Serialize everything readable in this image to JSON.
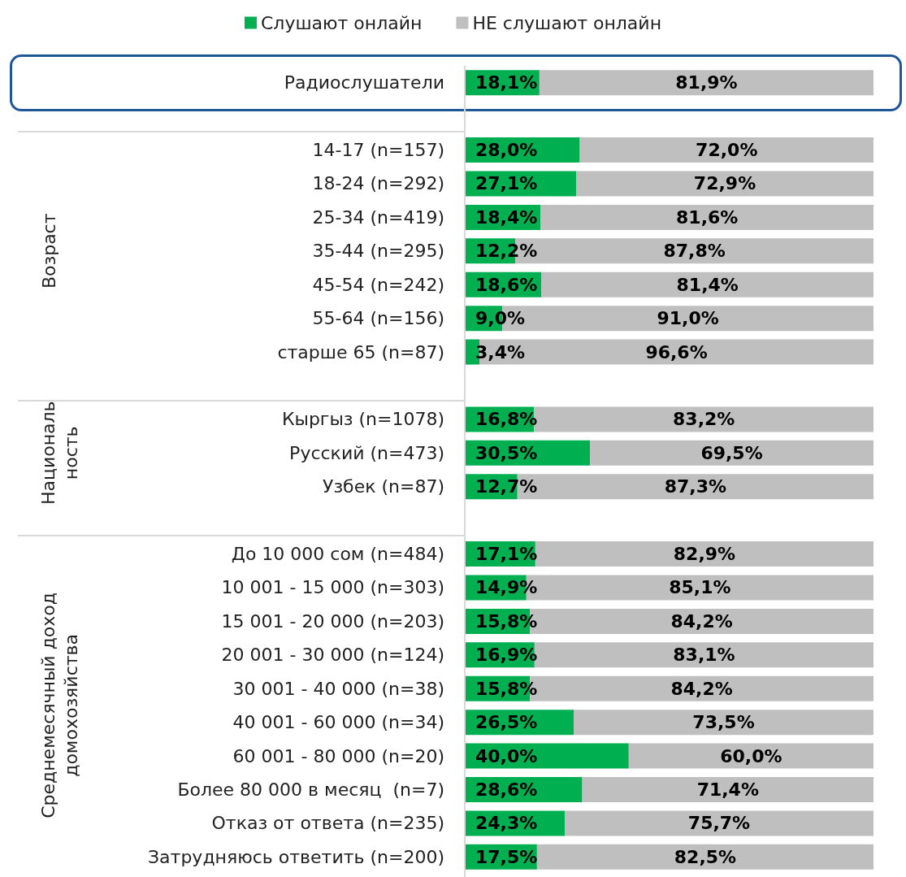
{
  "chart_data": {
    "type": "bar",
    "orientation": "horizontal",
    "stacked": true,
    "legend": "top",
    "tick_labels": "y",
    "xlim": [
      0,
      100
    ],
    "categories": [
      "Радиослушатели",
      null,
      "14-17 (n=157)",
      "18-24 (n=292)",
      "25-34 (n=419)",
      "35-44 (n=295)",
      "45-54 (n=242)",
      "55-64 (n=156)",
      "старше 65 (n=87)",
      null,
      "Кыргыз (n=1078)",
      "Русский (n=473)",
      "Узбек (n=87)",
      null,
      "До 10 000 сом (n=484)",
      "10 001 - 15 000 (n=303)",
      "15 001 - 20 000 (n=203)",
      "20 001 - 30 000 (n=124)",
      "30 001 - 40 000 (n=38)",
      "40 001 - 60 000 (n=34)",
      "60 001 - 80 000 (n=20)",
      "Более 80 000 в месяц  (n=7)",
      "Отказ от ответа (n=235)",
      "Затрудняюсь ответить (n=200)"
    ],
    "series": [
      {
        "name": "Слушают онлайн",
        "color": "#00b050",
        "values": [
          18.1,
          null,
          28.0,
          27.1,
          18.4,
          12.2,
          18.6,
          9.0,
          3.4,
          null,
          16.8,
          30.5,
          12.7,
          null,
          17.1,
          14.9,
          15.8,
          16.9,
          15.8,
          26.5,
          40.0,
          28.6,
          24.3,
          17.5
        ],
        "value_labels": [
          "18,1%",
          null,
          "28,0%",
          "27,1%",
          "18,4%",
          "12,2%",
          "18,6%",
          "9,0%",
          "3,4%",
          null,
          "16,8%",
          "30,5%",
          "12,7%",
          null,
          "17,1%",
          "14,9%",
          "15,8%",
          "16,9%",
          "15,8%",
          "26,5%",
          "40,0%",
          "28,6%",
          "24,3%",
          "17,5%"
        ]
      },
      {
        "name": "НЕ слушают онлайн",
        "color": "#bfbfbf",
        "values": [
          81.9,
          null,
          72.0,
          72.9,
          81.6,
          87.8,
          81.4,
          91.0,
          96.6,
          null,
          83.2,
          69.5,
          87.3,
          null,
          82.9,
          85.1,
          84.2,
          83.1,
          84.2,
          73.5,
          60.0,
          71.4,
          75.7,
          82.5
        ],
        "value_labels": [
          "81,9%",
          null,
          "72,0%",
          "72,9%",
          "81,6%",
          "87,8%",
          "81,4%",
          "91,0%",
          "96,6%",
          null,
          "83,2%",
          "69,5%",
          "87,3%",
          null,
          "82,9%",
          "85,1%",
          "84,2%",
          "83,1%",
          "84,2%",
          "73,5%",
          "60,0%",
          "71,4%",
          "75,7%",
          "82,5%"
        ]
      }
    ],
    "annotations": [
      "Возраст",
      "Националь\nность",
      "Среднемесячный доход\nдомохозяйства"
    ]
  }
}
